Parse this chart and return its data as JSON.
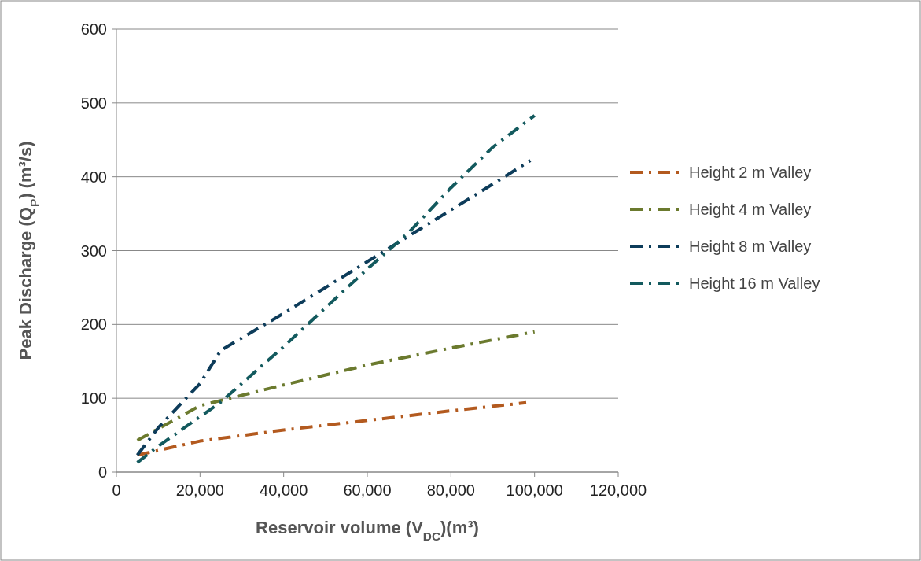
{
  "chart_data": {
    "type": "line",
    "xlabel": "Reservoir volume (V$_{DC}$)(m³)",
    "ylabel": "Peak Discharge (Q$_{P}$)  (m³/s)",
    "xlim": [
      0,
      120000
    ],
    "xticks": [
      {
        "value": 0,
        "label": "0"
      },
      {
        "value": 20000,
        "label": "20,000"
      },
      {
        "value": 40000,
        "label": "40,000"
      },
      {
        "value": 60000,
        "label": "60,000"
      },
      {
        "value": 80000,
        "label": "80,000"
      },
      {
        "value": 100000,
        "label": "100,000"
      },
      {
        "value": 120000,
        "label": "120,000"
      }
    ],
    "ylim": [
      0,
      600
    ],
    "yticks": [
      0,
      100,
      200,
      300,
      400,
      500,
      600
    ],
    "grid": "y",
    "legend": "right",
    "marker": "none",
    "line_style": "dashed",
    "series": [
      {
        "name": "Height 2 m Valley",
        "color": "#b35a1f",
        "x": [
          5000,
          20000,
          40000,
          60000,
          80000,
          98000
        ],
        "values": [
          23,
          42,
          57,
          70,
          83,
          94
        ]
      },
      {
        "name": "Height 4 m Valley",
        "color": "#6b7a2e",
        "x": [
          5000,
          20000,
          30000,
          40000,
          60000,
          80000,
          100000
        ],
        "values": [
          43,
          90,
          104,
          118,
          145,
          168,
          190
        ]
      },
      {
        "name": "Height 8 m Valley",
        "color": "#0d3c5a",
        "x": [
          5000,
          10000,
          20000,
          25000,
          40000,
          60000,
          70000,
          80000,
          90000,
          99000
        ],
        "values": [
          23,
          60,
          120,
          165,
          215,
          285,
          320,
          355,
          390,
          422
        ]
      },
      {
        "name": "Height 16 m Valley",
        "color": "#135a5e",
        "x": [
          5000,
          10000,
          20000,
          25000,
          40000,
          60000,
          70000,
          80000,
          90000,
          100000
        ],
        "values": [
          13,
          35,
          75,
          95,
          170,
          275,
          325,
          385,
          440,
          483
        ]
      }
    ]
  }
}
